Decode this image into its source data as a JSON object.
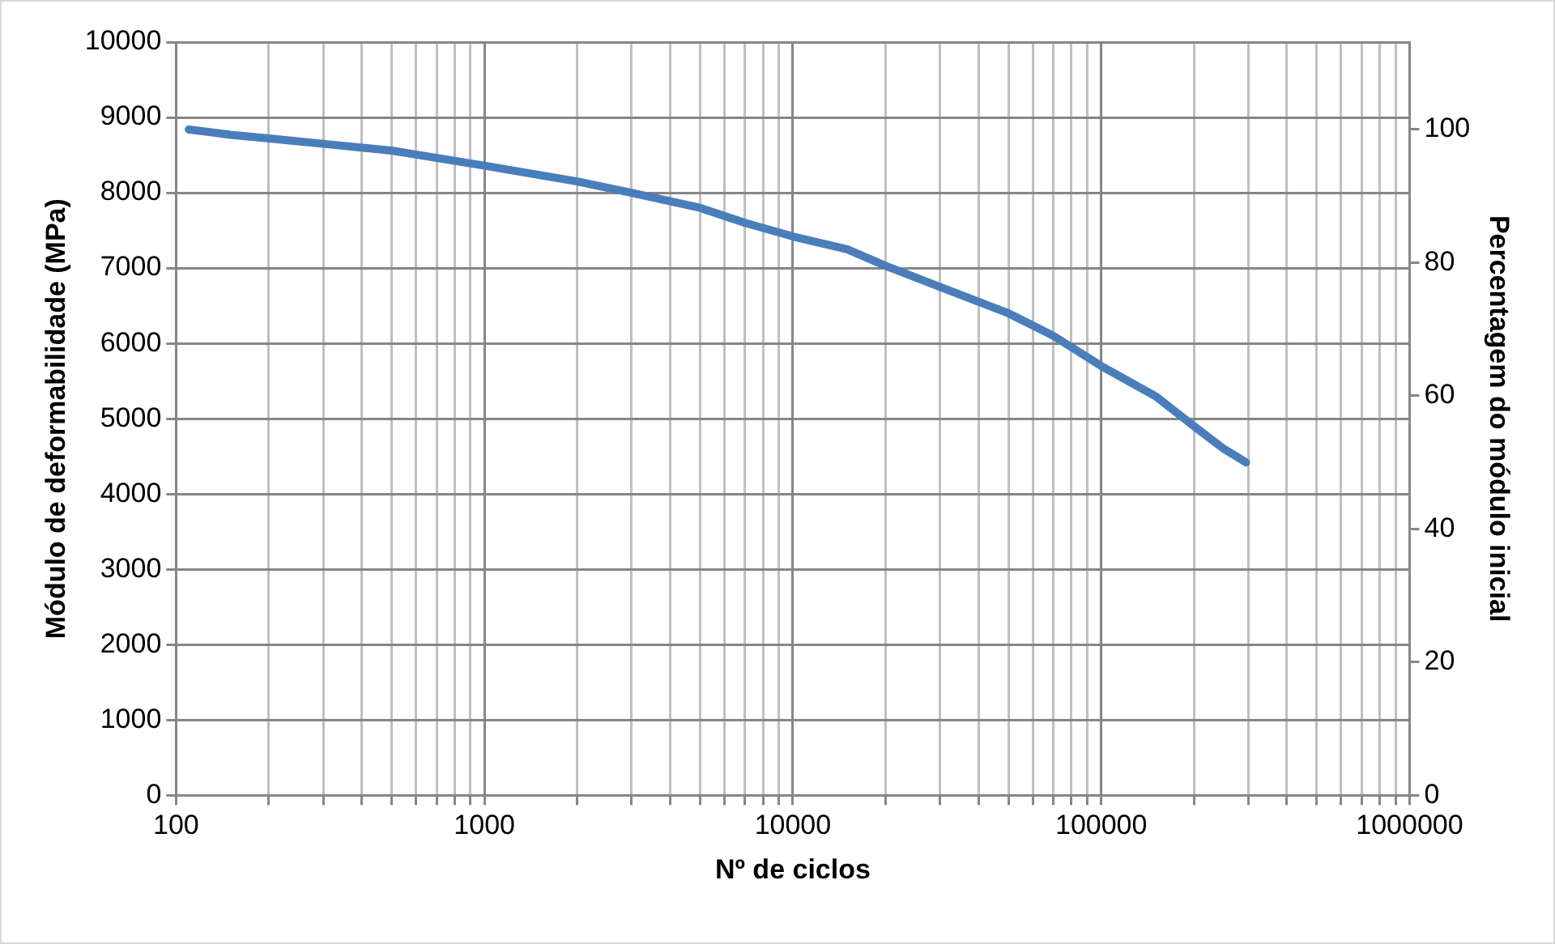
{
  "chart_data": {
    "type": "line",
    "xlabel": "Nº de ciclos",
    "ylabel": "Módulo de deformabilidade (MPa)",
    "y2label": "Percentagem do módulo inicial",
    "log": "x",
    "grid": true,
    "legend": false,
    "marker": "none",
    "line_style": "solid",
    "x": [
      110,
      150,
      200,
      300,
      500,
      1000,
      2000,
      3000,
      5000,
      7000,
      10000,
      15000,
      20000,
      30000,
      50000,
      70000,
      100000,
      150000,
      200000,
      250000,
      295000
    ],
    "series": [
      {
        "color": "#4a7ebb",
        "values": [
          8840,
          8770,
          8720,
          8650,
          8560,
          8360,
          8150,
          8000,
          7800,
          7600,
          7420,
          7250,
          7030,
          6750,
          6400,
          6100,
          5700,
          5300,
          4900,
          4600,
          4420
        ]
      }
    ],
    "xlim": [
      100,
      1000000
    ],
    "xticks": [
      100,
      {
        "value": 200,
        "label": null
      },
      {
        "value": 300,
        "label": null
      },
      {
        "value": 400,
        "label": null
      },
      {
        "value": 500,
        "label": null
      },
      {
        "value": 600,
        "label": null
      },
      {
        "value": 700,
        "label": null
      },
      {
        "value": 800,
        "label": null
      },
      {
        "value": 900,
        "label": null
      },
      1000,
      {
        "value": 2000,
        "label": null
      },
      {
        "value": 3000,
        "label": null
      },
      {
        "value": 4000,
        "label": null
      },
      {
        "value": 5000,
        "label": null
      },
      {
        "value": 6000,
        "label": null
      },
      {
        "value": 7000,
        "label": null
      },
      {
        "value": 8000,
        "label": null
      },
      {
        "value": 9000,
        "label": null
      },
      10000,
      {
        "value": 20000,
        "label": null
      },
      {
        "value": 30000,
        "label": null
      },
      {
        "value": 40000,
        "label": null
      },
      {
        "value": 50000,
        "label": null
      },
      {
        "value": 60000,
        "label": null
      },
      {
        "value": 70000,
        "label": null
      },
      {
        "value": 80000,
        "label": null
      },
      {
        "value": 90000,
        "label": null
      },
      100000,
      {
        "value": 200000,
        "label": null
      },
      {
        "value": 300000,
        "label": null
      },
      {
        "value": 400000,
        "label": null
      },
      {
        "value": 500000,
        "label": null
      },
      {
        "value": 600000,
        "label": null
      },
      {
        "value": 700000,
        "label": null
      },
      {
        "value": 800000,
        "label": null
      },
      {
        "value": 900000,
        "label": null
      },
      1000000
    ],
    "ylim": [
      0,
      10000
    ],
    "yticks": [
      0,
      1000,
      2000,
      3000,
      4000,
      5000,
      6000,
      7000,
      8000,
      9000,
      10000
    ],
    "y2lim": [
      0,
      113.1
    ],
    "y2ticks": [
      0,
      20,
      40,
      60,
      80,
      100
    ]
  }
}
